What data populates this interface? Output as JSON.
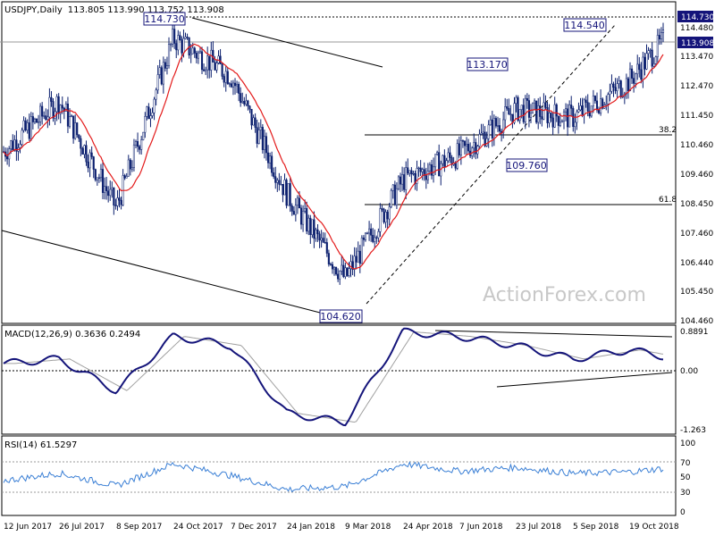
{
  "header": {
    "symbol": "USDJPY",
    "timeframe": "Daily",
    "ohlc": "113.805 113.990 113.752 113.908"
  },
  "watermark": "ActionForex.com",
  "price_axis": {
    "ticks": [
      "114.480",
      "113.470",
      "112.470",
      "111.450",
      "110.460",
      "109.460",
      "108.450",
      "107.460",
      "106.440",
      "105.450",
      "104.460"
    ],
    "current_value": "113.908",
    "highlight_value": "114.730"
  },
  "annotations": {
    "high_1": "114.730",
    "high_2": "114.540",
    "swing_high": "113.170",
    "swing_low": "109.760",
    "low": "104.620",
    "fib_38": "38.2",
    "fib_61": "61.8"
  },
  "macd": {
    "label": "MACD(12,26,9) 0.3636 0.2494",
    "ticks": [
      "0.8891",
      "0.00",
      "-1.263"
    ]
  },
  "rsi": {
    "label": "RSI(14) 61.5297",
    "ticks": [
      "100",
      "70",
      "50",
      "30",
      "0"
    ]
  },
  "x_axis": {
    "ticks": [
      "12 Jun 2017",
      "26 Jul 2017",
      "8 Sep 2017",
      "24 Oct 2017",
      "7 Dec 2017",
      "24 Jan 2018",
      "9 Mar 2018",
      "24 Apr 2018",
      "7 Jun 2018",
      "23 Jul 2018",
      "5 Sep 2018",
      "19 Oct 2018"
    ]
  },
  "colors": {
    "bars": "#0b1f6e",
    "ma": "#e31b1b",
    "macd_line": "#14147a",
    "macd_signal": "#a0a0a0",
    "rsi": "#3a7fd5",
    "trendline": "#000000",
    "watermark": "#c8c8c8"
  },
  "chart_data": {
    "type": "line",
    "title": "USDJPY, Daily",
    "date_range": [
      "2017-06-12",
      "2018-11-01"
    ],
    "x": [
      "2017-06-12",
      "2017-07-26",
      "2017-09-08",
      "2017-10-24",
      "2017-12-07",
      "2018-01-24",
      "2018-03-09",
      "2018-04-24",
      "2018-06-07",
      "2018-07-23",
      "2018-09-05",
      "2018-10-19",
      "2018-11-01"
    ],
    "series": [
      {
        "name": "USDJPY",
        "values": [
          110.0,
          111.8,
          108.0,
          114.0,
          112.7,
          108.5,
          105.5,
          109.0,
          109.9,
          111.5,
          111.2,
          112.5,
          113.908
        ]
      },
      {
        "name": "MACD",
        "values": [
          0.2,
          0.3,
          -0.4,
          0.8,
          0.6,
          -0.9,
          -1.1,
          0.9,
          0.8,
          0.6,
          0.3,
          0.5,
          0.3636
        ]
      },
      {
        "name": "RSI",
        "values": [
          45,
          55,
          38,
          68,
          52,
          33,
          37,
          68,
          58,
          63,
          55,
          57,
          61.5297
        ]
      }
    ],
    "ylim": [
      104.2,
      115.4
    ],
    "levels": {
      "fib_38.2": 110.8,
      "fib_61.8": 108.6,
      "high": 114.73,
      "low": 104.62
    },
    "grid": false,
    "legend": "none"
  }
}
